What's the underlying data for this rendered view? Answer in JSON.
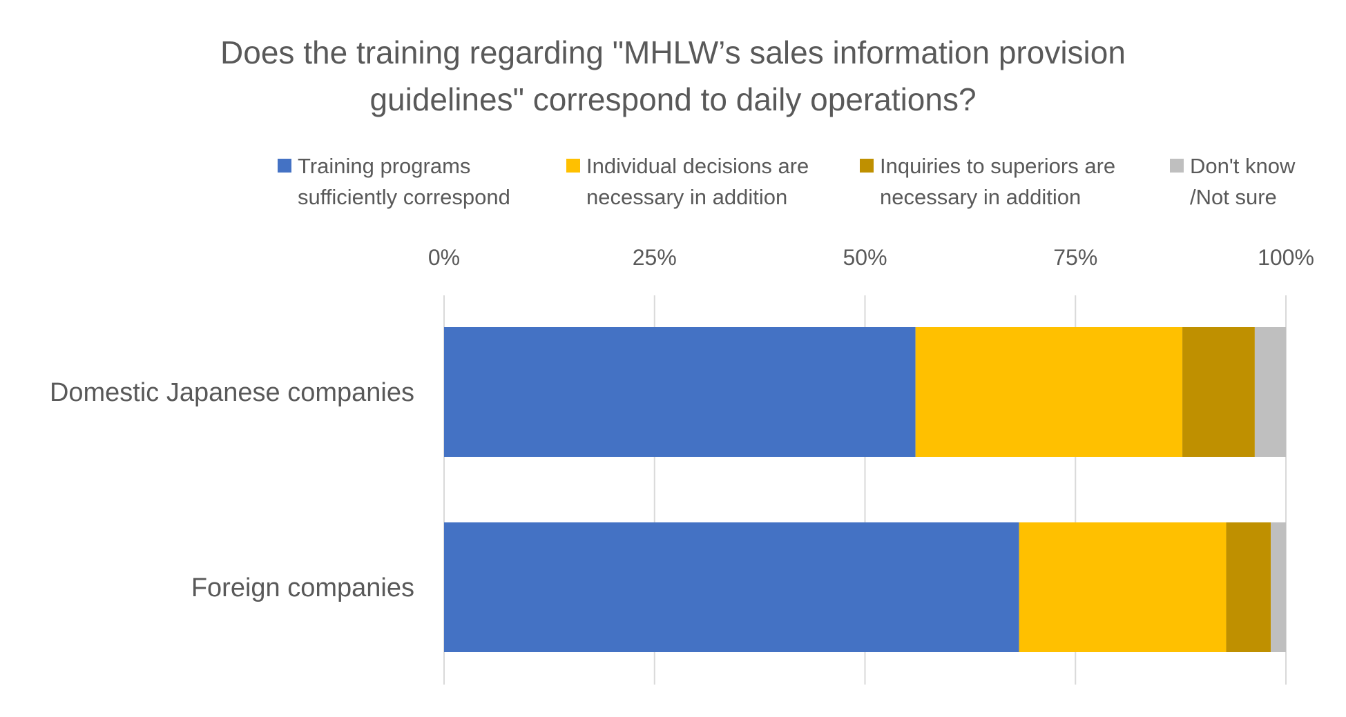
{
  "chart_data": {
    "type": "bar",
    "orientation": "horizontal",
    "stacked": true,
    "title_lines": [
      "Does the training regarding \"MHLW’s sales information provision",
      "guidelines\" correspond to daily operations?"
    ],
    "categories": [
      "Domestic Japanese companies",
      "Foreign companies"
    ],
    "series": [
      {
        "name_lines": [
          "Training programs",
          "sufficiently correspond"
        ],
        "color": "#4472C4",
        "values": [
          56,
          68.3
        ]
      },
      {
        "name_lines": [
          "Individual decisions are",
          "necessary in addition"
        ],
        "color": "#FFC000",
        "values": [
          31.7,
          24.6
        ]
      },
      {
        "name_lines": [
          "Inquiries to superiors are",
          "necessary in addition"
        ],
        "color": "#BF9000",
        "values": [
          8.6,
          5.3
        ]
      },
      {
        "name_lines": [
          "Don't know",
          "/Not sure"
        ],
        "color": "#BFBFBF",
        "values": [
          3.7,
          1.8
        ]
      }
    ],
    "x_ticks": [
      "0%",
      "25%",
      "50%",
      "75%",
      "100%"
    ],
    "xlim": [
      0,
      100
    ],
    "axis_position": "top",
    "grid": true,
    "legend_position": "top"
  }
}
